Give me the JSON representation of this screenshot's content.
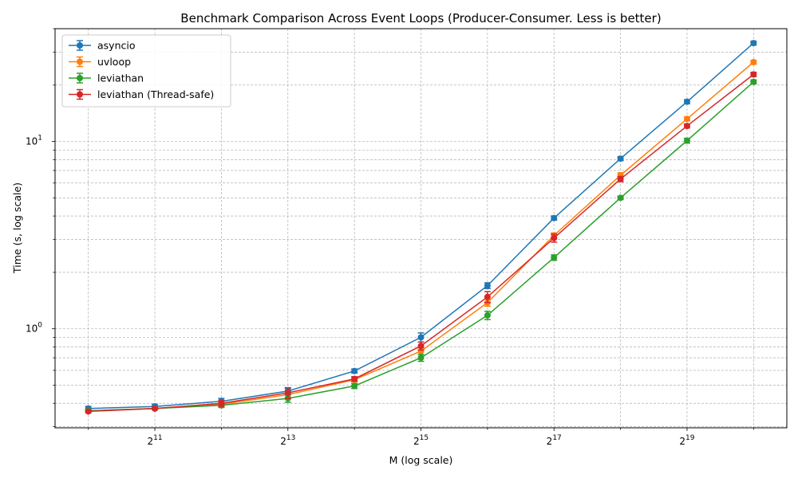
{
  "chart_data": {
    "type": "line",
    "title": "Benchmark Comparison Across Event Loops (Producer-Consumer. Less is better)",
    "xlabel": "M (log scale)",
    "ylabel": "Time (s, log scale)",
    "xscale": "log2",
    "yscale": "log10",
    "xlim": [
      724,
      1482910
    ],
    "ylim": [
      0.296,
      40
    ],
    "x": [
      1024,
      2048,
      4096,
      8192,
      16384,
      32768,
      65536,
      131072,
      262144,
      524288,
      1048576
    ],
    "x_tick_labels": [
      {
        "base": "2",
        "exp": "11",
        "value": 2048
      },
      {
        "base": "2",
        "exp": "13",
        "value": 8192
      },
      {
        "base": "2",
        "exp": "15",
        "value": 32768
      },
      {
        "base": "2",
        "exp": "17",
        "value": 131072
      },
      {
        "base": "2",
        "exp": "19",
        "value": 524288
      }
    ],
    "y_tick_labels": [
      {
        "base": "10",
        "exp": "0",
        "value": 1
      },
      {
        "base": "10",
        "exp": "1",
        "value": 10
      }
    ],
    "grid": true,
    "legend_position": "top-left",
    "series": [
      {
        "name": "asyncio",
        "color": "#1f77b4",
        "values": [
          0.375,
          0.385,
          0.41,
          0.465,
          0.595,
          0.9,
          1.7,
          3.9,
          8.1,
          16.3,
          33.5
        ],
        "errors": [
          0.01,
          0.01,
          0.015,
          0.015,
          0.015,
          0.05,
          0.06,
          0.1,
          0.2,
          0.4,
          0.8
        ]
      },
      {
        "name": "uvloop",
        "color": "#ff7f0e",
        "values": [
          0.365,
          0.375,
          0.395,
          0.445,
          0.535,
          0.76,
          1.38,
          3.15,
          6.6,
          13.2,
          26.5
        ],
        "errors": [
          0.005,
          0.005,
          0.01,
          0.015,
          0.015,
          0.03,
          0.06,
          0.1,
          0.2,
          0.3,
          0.6
        ]
      },
      {
        "name": "leviathan",
        "color": "#2ca02c",
        "values": [
          0.365,
          0.375,
          0.39,
          0.425,
          0.495,
          0.7,
          1.18,
          2.4,
          5.0,
          10.1,
          20.8
        ],
        "errors": [
          0.005,
          0.005,
          0.01,
          0.02,
          0.015,
          0.03,
          0.06,
          0.08,
          0.1,
          0.3,
          0.5
        ]
      },
      {
        "name": "leviathan (Thread-safe)",
        "color": "#d62728",
        "values": [
          0.362,
          0.375,
          0.4,
          0.455,
          0.54,
          0.81,
          1.48,
          3.05,
          6.3,
          12.1,
          22.8
        ],
        "errors": [
          0.005,
          0.005,
          0.015,
          0.03,
          0.015,
          0.04,
          0.1,
          0.15,
          0.2,
          0.3,
          0.6
        ]
      }
    ]
  }
}
